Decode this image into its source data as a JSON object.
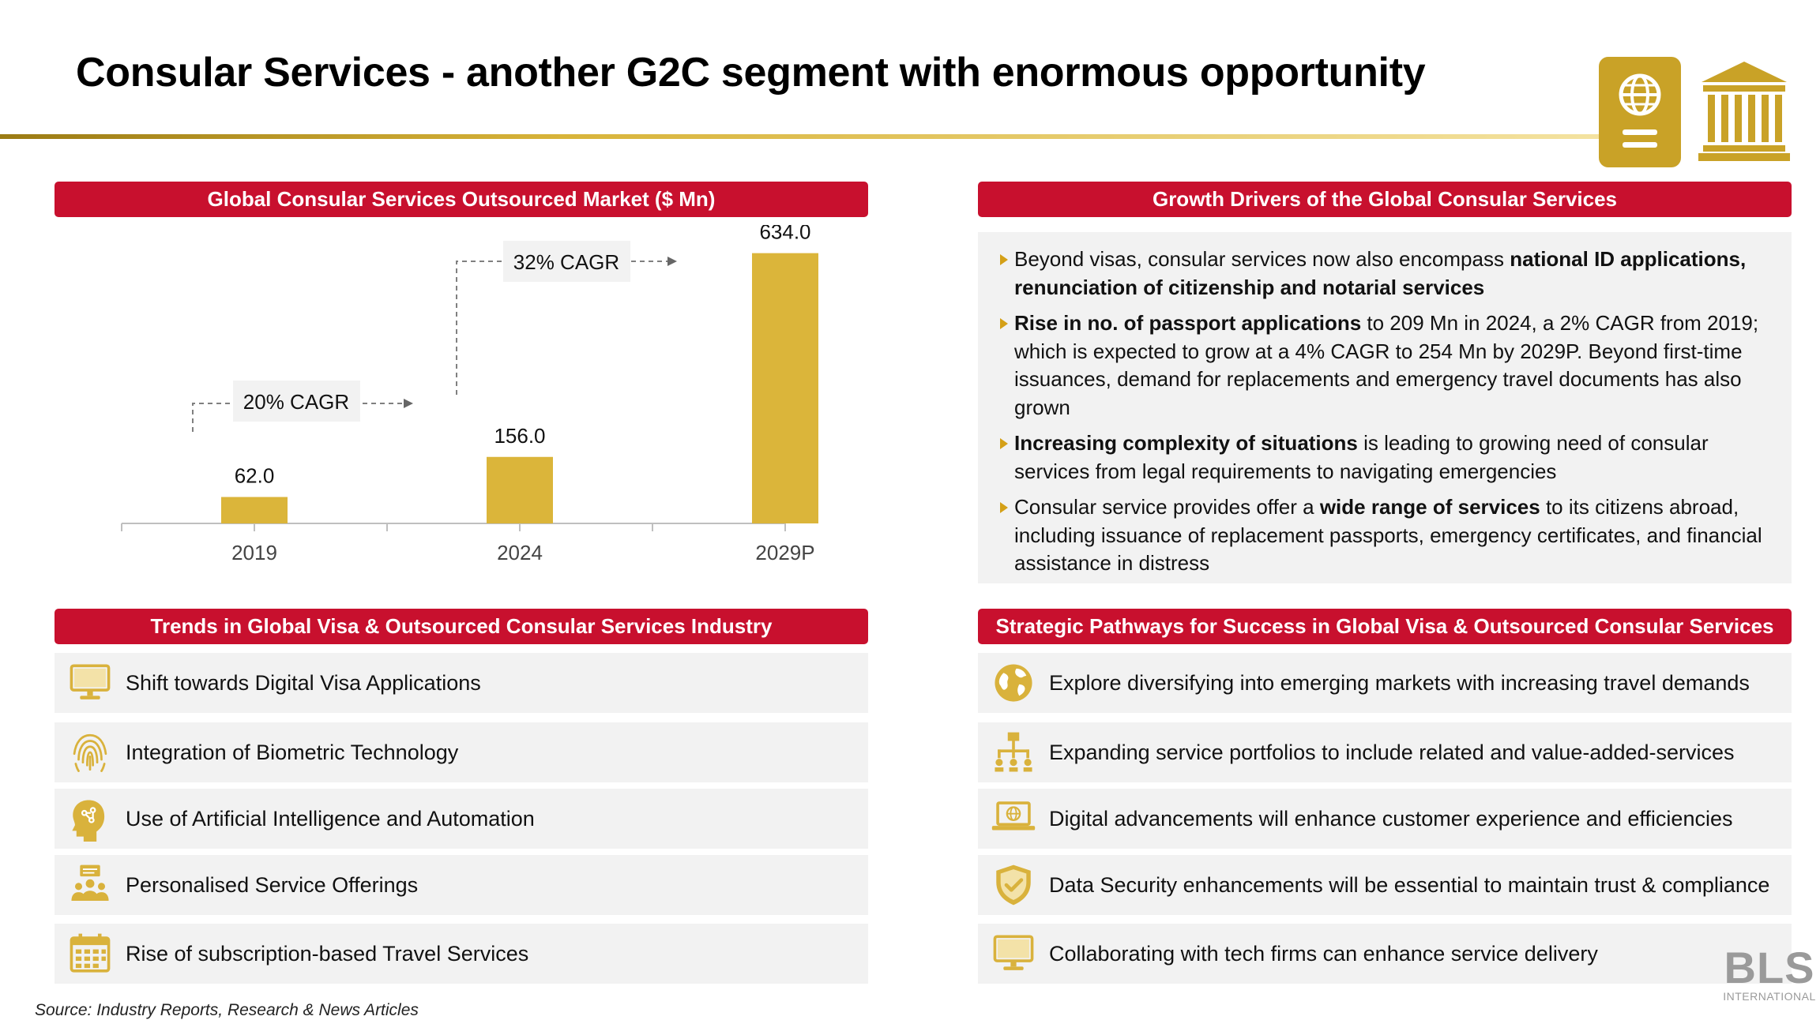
{
  "title": "Consular Services  - another G2C segment with enormous opportunity",
  "colors": {
    "accent_red": "#c8102e",
    "gold": "#dbb53a",
    "panel_gray": "#f2f2f2"
  },
  "icons": {
    "header": [
      "passport-icon",
      "government-building-icon"
    ]
  },
  "chart_section": {
    "header": "Global Consular Services Outsourced Market ($ Mn)",
    "chart_data": {
      "type": "bar",
      "title": "Global Consular Services Outsourced Market ($ Mn)",
      "categories": [
        "2019",
        "2024",
        "2029P"
      ],
      "values": [
        62.0,
        156.0,
        634.0
      ],
      "value_labels": [
        "62.0",
        "156.0",
        "634.0"
      ],
      "ylim": [
        0,
        700
      ],
      "xlabel": "",
      "ylabel": "",
      "grid": false,
      "annotations": [
        {
          "text": "20% CAGR",
          "from": "2019",
          "to": "2024"
        },
        {
          "text": "32% CAGR",
          "from": "2024",
          "to": "2029P"
        }
      ]
    }
  },
  "drivers": {
    "header": "Growth Drivers of the Global Consular Services",
    "items": [
      {
        "parts": [
          {
            "t": "Beyond visas, consular services now also encompass ",
            "b": false
          },
          {
            "t": "national ID applications, renunciation of citizenship and notarial services",
            "b": true
          }
        ]
      },
      {
        "parts": [
          {
            "t": "Rise in no. of passport applications",
            "b": true
          },
          {
            "t": " to 209 Mn in 2024, a 2% CAGR from 2019; which is expected to grow at a 4% CAGR to 254 Mn by 2029P. Beyond first-time issuances, demand for replacements and emergency travel documents has also grown",
            "b": false
          }
        ]
      },
      {
        "parts": [
          {
            "t": "Increasing complexity of situations",
            "b": true
          },
          {
            "t": " is leading to growing need of consular services from legal requirements to navigating emergencies",
            "b": false
          }
        ]
      },
      {
        "parts": [
          {
            "t": "Consular service provides offer a ",
            "b": false
          },
          {
            "t": "wide range of services",
            "b": true
          },
          {
            "t": " to its citizens abroad, including issuance of replacement passports, emergency certificates, and financial assistance in distress",
            "b": false
          }
        ]
      }
    ]
  },
  "trends": {
    "header": "Trends in Global Visa & Outsourced Consular Services Industry",
    "items": [
      {
        "icon": "monitor-icon",
        "text": "Shift towards Digital Visa Applications"
      },
      {
        "icon": "fingerprint-icon",
        "text": "Integration of Biometric Technology"
      },
      {
        "icon": "ai-head-icon",
        "text": "Use of Artificial Intelligence and Automation"
      },
      {
        "icon": "personalised-service-icon",
        "text": "Personalised Service Offerings"
      },
      {
        "icon": "calendar-icon",
        "text": "Rise of subscription-based Travel Services"
      }
    ]
  },
  "pathways": {
    "header": "Strategic Pathways for Success in Global Visa & Outsourced Consular Services",
    "items": [
      {
        "icon": "globe-icon",
        "text": "Explore diversifying into emerging markets with increasing travel demands"
      },
      {
        "icon": "org-chart-icon",
        "text": "Expanding service portfolios to include related and value-added-services"
      },
      {
        "icon": "laptop-globe-icon",
        "text": "Digital advancements will enhance customer experience and efficiencies"
      },
      {
        "icon": "shield-check-icon",
        "text": "Data Security enhancements will be essential to maintain trust & compliance"
      },
      {
        "icon": "monitor-icon",
        "text": "Collaborating with tech firms can enhance service delivery"
      }
    ]
  },
  "source": "Source: Industry Reports, Research & News Articles",
  "brand": {
    "name": "BLS",
    "sub": "INTERNATIONAL"
  }
}
